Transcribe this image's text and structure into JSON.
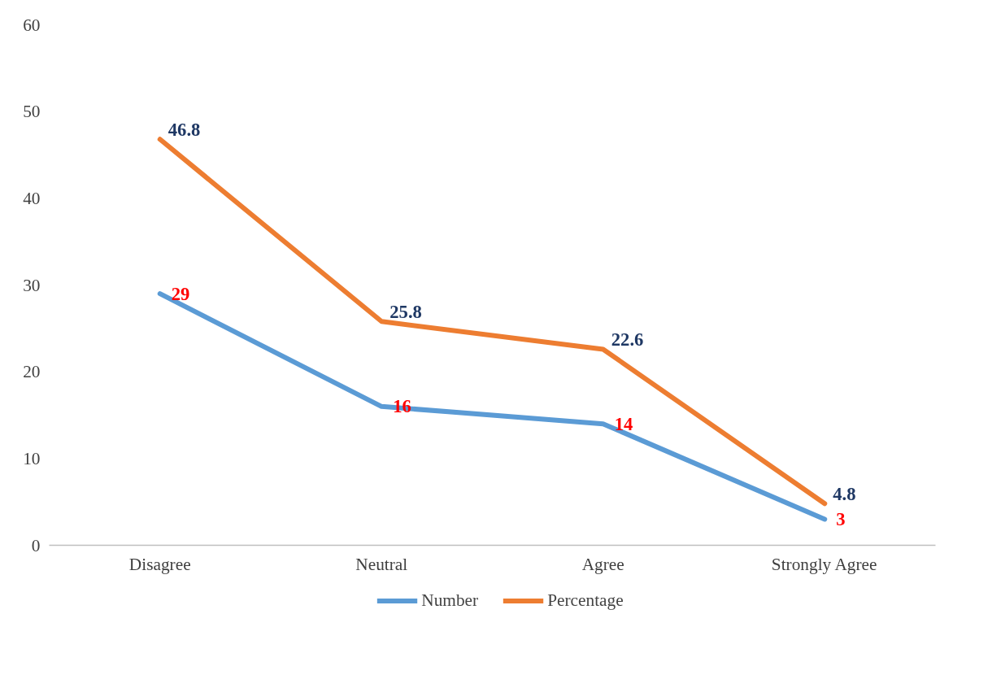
{
  "chart_data": {
    "type": "line",
    "categories": [
      "Disagree",
      "Neutral",
      "Agree",
      "Strongly Agree"
    ],
    "series": [
      {
        "name": "Number",
        "color": "#5b9bd5",
        "values": [
          29,
          16,
          14,
          3
        ]
      },
      {
        "name": "Percentage",
        "color": "#ed7d31",
        "values": [
          46.8,
          25.8,
          22.6,
          4.8
        ]
      }
    ],
    "ylim": [
      0,
      60
    ],
    "yticks": [
      0,
      10,
      20,
      30,
      40,
      50,
      60
    ],
    "grid": false,
    "legend": "bottom",
    "data_labels": true,
    "marker": "none",
    "line_style": "solid"
  }
}
